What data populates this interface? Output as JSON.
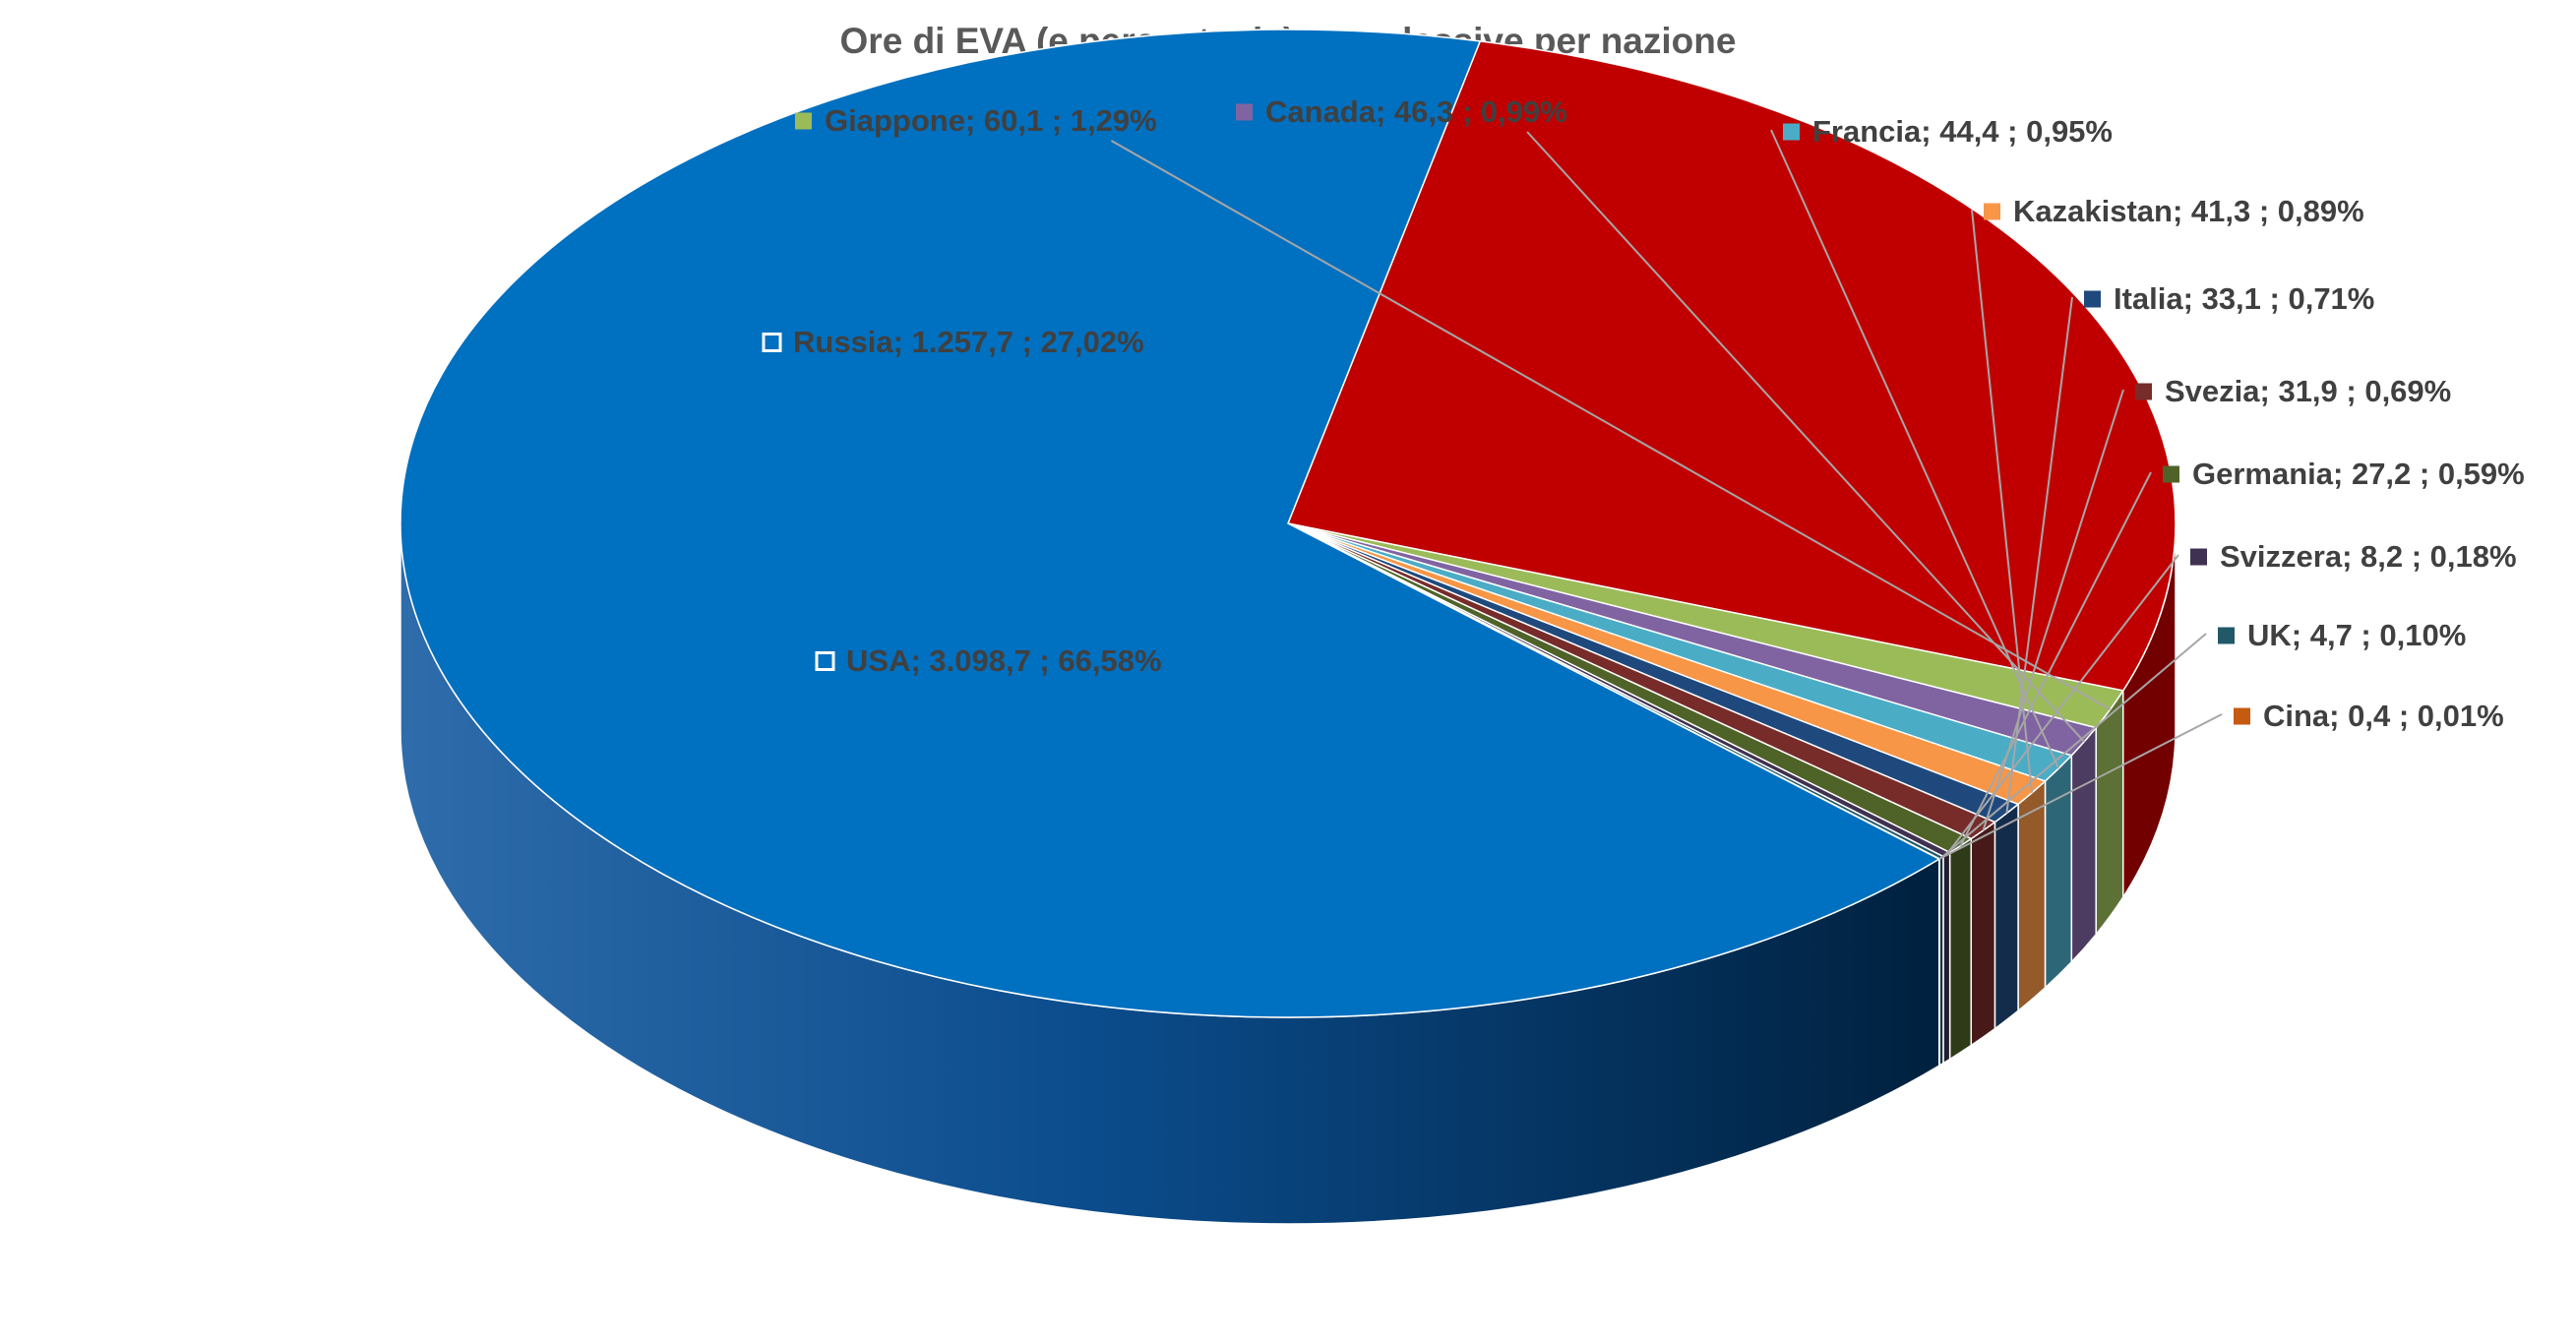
{
  "chart_data": {
    "type": "pie",
    "style": "3d",
    "title": "Ore di EVA (e percentuale) complessive per nazione",
    "slices": [
      {
        "name": "Russia",
        "value": 1257.7,
        "percent": 27.02,
        "label": "Russia;  1.257,7 ; 27,02%",
        "color": "#C00000"
      },
      {
        "name": "Giappone",
        "value": 60.1,
        "percent": 1.29,
        "label": "Giappone;  60,1 ; 1,29%",
        "color": "#9BBB59"
      },
      {
        "name": "Canada",
        "value": 46.3,
        "percent": 0.99,
        "label": "Canada;  46,3 ; 0,99%",
        "color": "#8064A2"
      },
      {
        "name": "Francia",
        "value": 44.4,
        "percent": 0.95,
        "label": "Francia;  44,4 ; 0,95%",
        "color": "#4BACC6"
      },
      {
        "name": "Kazakistan",
        "value": 41.3,
        "percent": 0.89,
        "label": "Kazakistan;  41,3 ; 0,89%",
        "color": "#F79646"
      },
      {
        "name": "Italia",
        "value": 33.1,
        "percent": 0.71,
        "label": "Italia;  33,1 ; 0,71%",
        "color": "#1F497D"
      },
      {
        "name": "Svezia",
        "value": 31.9,
        "percent": 0.69,
        "label": "Svezia;  31,9 ; 0,69%",
        "color": "#772C2A"
      },
      {
        "name": "Germania",
        "value": 27.2,
        "percent": 0.59,
        "label": "Germania;  27,2 ; 0,59%",
        "color": "#4F6228"
      },
      {
        "name": "Svizzera",
        "value": 8.2,
        "percent": 0.18,
        "label": "Svizzera;  8,2 ; 0,18%",
        "color": "#3F3151"
      },
      {
        "name": "UK",
        "value": 4.7,
        "percent": 0.1,
        "label": "UK;  4,7 ; 0,10%",
        "color": "#215968"
      },
      {
        "name": "Cina",
        "value": 0.4,
        "percent": 0.01,
        "label": "Cina;  0,4 ; 0,01%",
        "color": "#C55A11"
      },
      {
        "name": "USA",
        "value": 3098.7,
        "percent": 66.58,
        "label": "USA;  3.098,7 ; 66,58%",
        "color": "#0070C0"
      }
    ]
  }
}
